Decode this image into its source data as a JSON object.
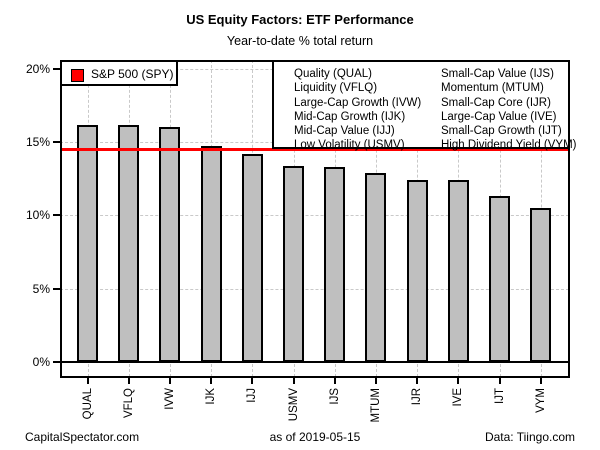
{
  "title": "US Equity Factors: ETF Performance",
  "subtitle": "Year-to-date % total return",
  "benchmark_legend": {
    "label": "S&P 500 (SPY)",
    "swatch_color": "#ff0000"
  },
  "etf_legend": {
    "col1": [
      "Quality (QUAL)",
      "Liquidity (VFLQ)",
      "Large-Cap Growth (IVW)",
      "Mid-Cap Growth (IJK)",
      "Mid-Cap Value (IJJ)",
      "Low Volatility (USMV)"
    ],
    "col2": [
      "Small-Cap Value (IJS)",
      "Momentum (MTUM)",
      "Small-Cap Core (IJR)",
      "Large-Cap Value (IVE)",
      "Small-Cap Growth (IJT)",
      "High Dividend Yield (VYM)"
    ]
  },
  "chart_data": {
    "type": "bar",
    "title": "US Equity Factors: ETF Performance",
    "subtitle": "Year-to-date % total return",
    "categories": [
      "QUAL",
      "VFLQ",
      "IVW",
      "IJK",
      "IJJ",
      "USMV",
      "IJS",
      "MTUM",
      "IJR",
      "IVE",
      "IJT",
      "VYM"
    ],
    "values": [
      16.2,
      16.2,
      16.0,
      14.7,
      14.2,
      13.4,
      13.3,
      12.9,
      12.4,
      12.4,
      11.3,
      10.5
    ],
    "bar_color": "#bfbfbf",
    "bar_border_color": "#000000",
    "yticks": [
      0,
      5,
      10,
      15,
      20
    ],
    "ytick_labels": [
      "0%",
      "5%",
      "10%",
      "15%",
      "20%"
    ],
    "ylim": [
      -1,
      20.6
    ],
    "grid": true,
    "grid_color": "#c9c9c9",
    "reference_line": {
      "label": "S&P 500 (SPY)",
      "value": 14.5,
      "color": "#ff0000"
    },
    "legend_position": "top-left"
  },
  "footer": {
    "left": "CapitalSpectator.com",
    "center": "as of  2019-05-15",
    "right": "Data: Tiingo.com"
  }
}
